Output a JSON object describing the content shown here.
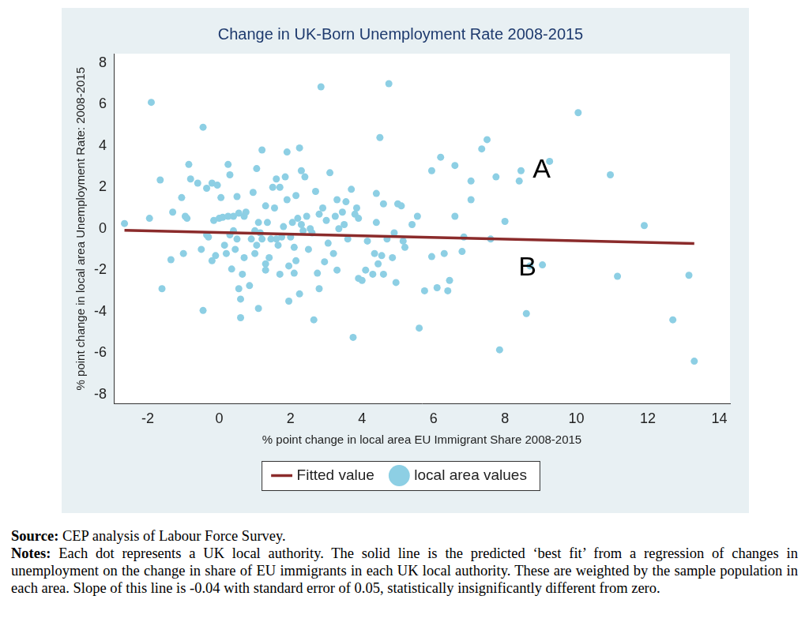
{
  "chart_data": {
    "type": "scatter",
    "title": "Change in UK-Born Unemployment Rate 2008-2015",
    "x_label": "% point change in local area EU Immigrant Share 2008-2015",
    "y_label": "% point change in local area Unemployment Rate: 2008-2015",
    "xlim": [
      -2.95,
      14.3
    ],
    "ylim": [
      -8.45,
      8.45
    ],
    "xticks": [
      -2,
      0,
      2,
      4,
      6,
      8,
      10,
      12,
      14
    ],
    "yticks": [
      -8,
      -6,
      -4,
      -2,
      0,
      2,
      4,
      6,
      8
    ],
    "grid": false,
    "legend": "bottom",
    "series": [
      {
        "name": "local area values",
        "type": "scatter",
        "color": "#8dcfe4",
        "marker": "circle",
        "x": [
          -2.65,
          -1.95,
          -1.9,
          -1.65,
          -1.6,
          -1.3,
          -1.35,
          -1.05,
          -1.0,
          -0.95,
          -0.9,
          -0.85,
          -0.8,
          -0.6,
          -0.45,
          -0.5,
          -0.45,
          -0.35,
          -0.35,
          -0.3,
          -0.2,
          -0.2,
          -0.15,
          -0.1,
          -0.05,
          0.0,
          0.05,
          0.1,
          0.15,
          0.2,
          0.25,
          0.25,
          0.3,
          0.3,
          0.35,
          0.4,
          0.4,
          0.45,
          0.5,
          0.5,
          0.55,
          0.55,
          0.6,
          0.6,
          0.65,
          0.7,
          0.7,
          0.75,
          0.85,
          0.9,
          0.95,
          1.0,
          1.0,
          1.05,
          1.05,
          1.1,
          1.1,
          1.15,
          1.2,
          1.2,
          1.3,
          1.3,
          1.3,
          1.35,
          1.4,
          1.45,
          1.5,
          1.55,
          1.6,
          1.6,
          1.65,
          1.7,
          1.7,
          1.75,
          1.8,
          1.85,
          1.9,
          1.9,
          1.95,
          1.95,
          2.0,
          2.05,
          2.1,
          2.1,
          2.15,
          2.15,
          2.2,
          2.25,
          2.25,
          2.3,
          2.3,
          2.35,
          2.4,
          2.45,
          2.5,
          2.55,
          2.6,
          2.65,
          2.7,
          2.75,
          2.8,
          2.8,
          2.85,
          2.9,
          2.95,
          3.0,
          3.05,
          3.1,
          3.2,
          3.25,
          3.3,
          3.3,
          3.35,
          3.45,
          3.5,
          3.55,
          3.6,
          3.7,
          3.75,
          3.8,
          3.85,
          3.9,
          3.9,
          4.0,
          4.1,
          4.15,
          4.3,
          4.35,
          4.4,
          4.4,
          4.45,
          4.5,
          4.55,
          4.6,
          4.6,
          4.7,
          4.75,
          4.85,
          4.9,
          4.95,
          5.0,
          5.1,
          5.15,
          5.2,
          5.4,
          5.55,
          5.6,
          5.75,
          5.95,
          5.95,
          6.1,
          6.2,
          6.3,
          6.4,
          6.45,
          6.6,
          6.6,
          6.8,
          6.85,
          7.05,
          7.05,
          7.35,
          7.5,
          7.6,
          7.75,
          7.85,
          8.0,
          8.4,
          8.45,
          8.6,
          8.7,
          9.05,
          9.25,
          10.05,
          10.95,
          11.15,
          11.9,
          12.7,
          13.15,
          13.3
        ],
        "values": [
          0.25,
          0.5,
          6.1,
          2.35,
          -2.9,
          0.8,
          -1.5,
          1.5,
          -1.2,
          0.6,
          0.5,
          3.1,
          2.4,
          2.2,
          4.9,
          -1.0,
          -3.95,
          1.95,
          -0.3,
          -0.4,
          2.2,
          -1.55,
          0.4,
          -1.3,
          2.1,
          0.5,
          1.5,
          0.55,
          -0.8,
          -1.2,
          0.6,
          3.1,
          2.6,
          -0.3,
          -1.95,
          0.6,
          -0.1,
          -1.0,
          1.55,
          -0.5,
          -2.9,
          0.75,
          -3.4,
          -4.3,
          -2.2,
          -1.4,
          0.6,
          0.8,
          -2.75,
          -0.5,
          1.75,
          -1.2,
          -0.1,
          2.9,
          -0.8,
          -3.85,
          0.3,
          -0.2,
          3.8,
          -0.5,
          -1.7,
          -2.0,
          1.1,
          0.3,
          -1.4,
          -0.5,
          2.0,
          1.0,
          2.4,
          -0.5,
          -0.8,
          -2.2,
          2.0,
          -0.4,
          0.1,
          2.5,
          1.4,
          3.7,
          -3.5,
          -1.8,
          -0.4,
          0.3,
          -0.9,
          -2.15,
          1.6,
          -1.55,
          0.5,
          3.9,
          -3.15,
          2.8,
          0.2,
          -0.1,
          2.5,
          0.6,
          -1.0,
          0.0,
          -0.2,
          -4.4,
          1.8,
          -2.15,
          0.7,
          -2.9,
          6.85,
          1.0,
          -1.6,
          0.4,
          -0.7,
          2.7,
          -1.2,
          0.6,
          -2.0,
          1.4,
          0.0,
          0.8,
          0.2,
          1.3,
          -0.5,
          1.9,
          -5.25,
          0.7,
          1.0,
          0.5,
          -2.4,
          -2.5,
          -2.0,
          -0.6,
          -2.2,
          -1.2,
          0.3,
          1.7,
          -1.7,
          4.4,
          -1.3,
          1.2,
          -2.2,
          -0.5,
          7.0,
          -1.4,
          -0.2,
          -2.6,
          1.2,
          1.1,
          -0.6,
          -0.9,
          0.2,
          0.6,
          -4.8,
          -3.0,
          -1.35,
          2.8,
          -2.85,
          3.45,
          -1.2,
          -3.0,
          -2.5,
          0.6,
          3.05,
          -1.1,
          -0.4,
          2.3,
          1.4,
          3.85,
          4.3,
          -0.5,
          2.5,
          -5.85,
          0.35,
          2.3,
          2.8,
          -4.1,
          -1.8,
          -1.75,
          3.25,
          5.6,
          2.6,
          -2.3,
          0.15,
          -4.4,
          -2.25,
          -6.4
        ]
      },
      {
        "name": "Fitted value",
        "type": "line",
        "color": "#8b2b2b",
        "line_style": "solid",
        "x": [
          -2.65,
          13.3
        ],
        "values": [
          -0.08,
          -0.72
        ]
      }
    ],
    "annotations": [
      {
        "text": "A",
        "x": 9.03,
        "y": 2.83
      },
      {
        "text": "B",
        "x": 8.63,
        "y": -1.91
      }
    ]
  },
  "source": {
    "label": "Source:",
    "text": "CEP analysis of Labour Force Survey."
  },
  "notes": {
    "label": "Notes:",
    "text": "Each dot represents a UK local authority. The solid line is the predicted ‘best fit’ from a regression of changes in unemployment on the change in share of EU immigrants in each UK local authority. These are weighted by the sample population in each area. Slope of this line is -0.04 with standard error of 0.05, statistically insignificantly different from zero."
  }
}
